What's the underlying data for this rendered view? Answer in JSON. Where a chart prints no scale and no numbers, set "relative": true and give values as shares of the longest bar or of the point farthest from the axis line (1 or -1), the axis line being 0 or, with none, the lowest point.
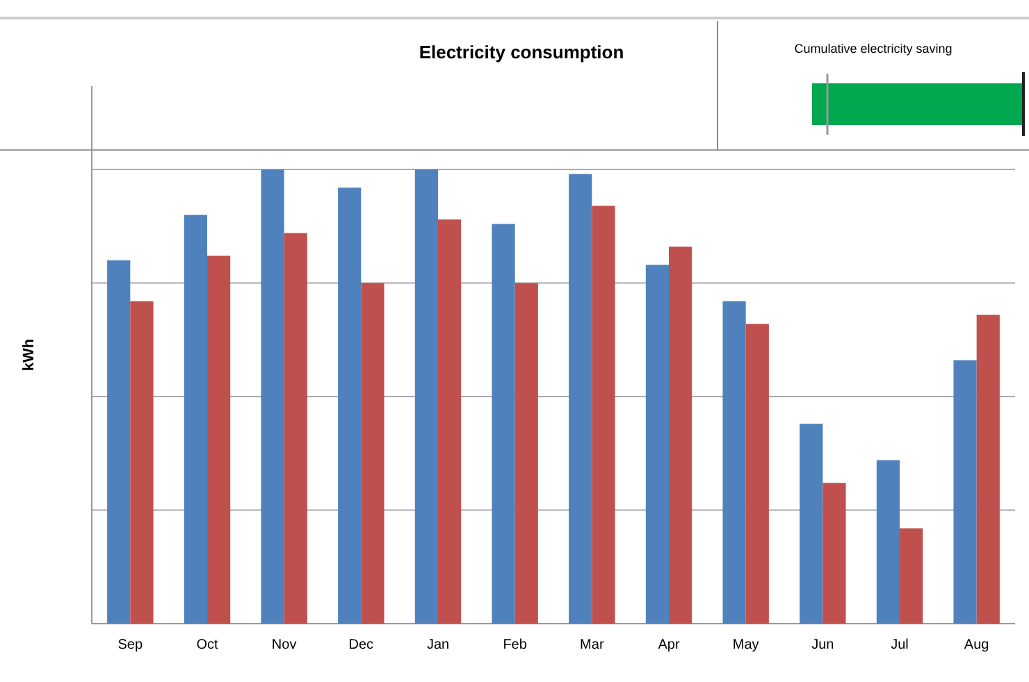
{
  "chart_data": {
    "type": "bar",
    "title": "Electricity consumption",
    "ylabel": "kWh",
    "relative": true,
    "grid": "y",
    "categories": [
      "Sep",
      "Oct",
      "Nov",
      "Dec",
      "Jan",
      "Feb",
      "Mar",
      "Apr",
      "May",
      "Jun",
      "Jul",
      "Aug"
    ],
    "series": [
      {
        "color": "#4f81bd",
        "values": [
          0.8,
          0.9,
          1,
          0.96,
          1,
          0.88,
          0.99,
          0.79,
          0.71,
          0.44,
          0.36,
          0.58
        ]
      },
      {
        "color": "#c0504d",
        "values": [
          0.71,
          0.81,
          0.86,
          0.75,
          0.89,
          0.75,
          0.92,
          0.83,
          0.66,
          0.31,
          0.21,
          0.68
        ]
      }
    ],
    "annotations": [
      "Cumulative electricity saving"
    ]
  }
}
